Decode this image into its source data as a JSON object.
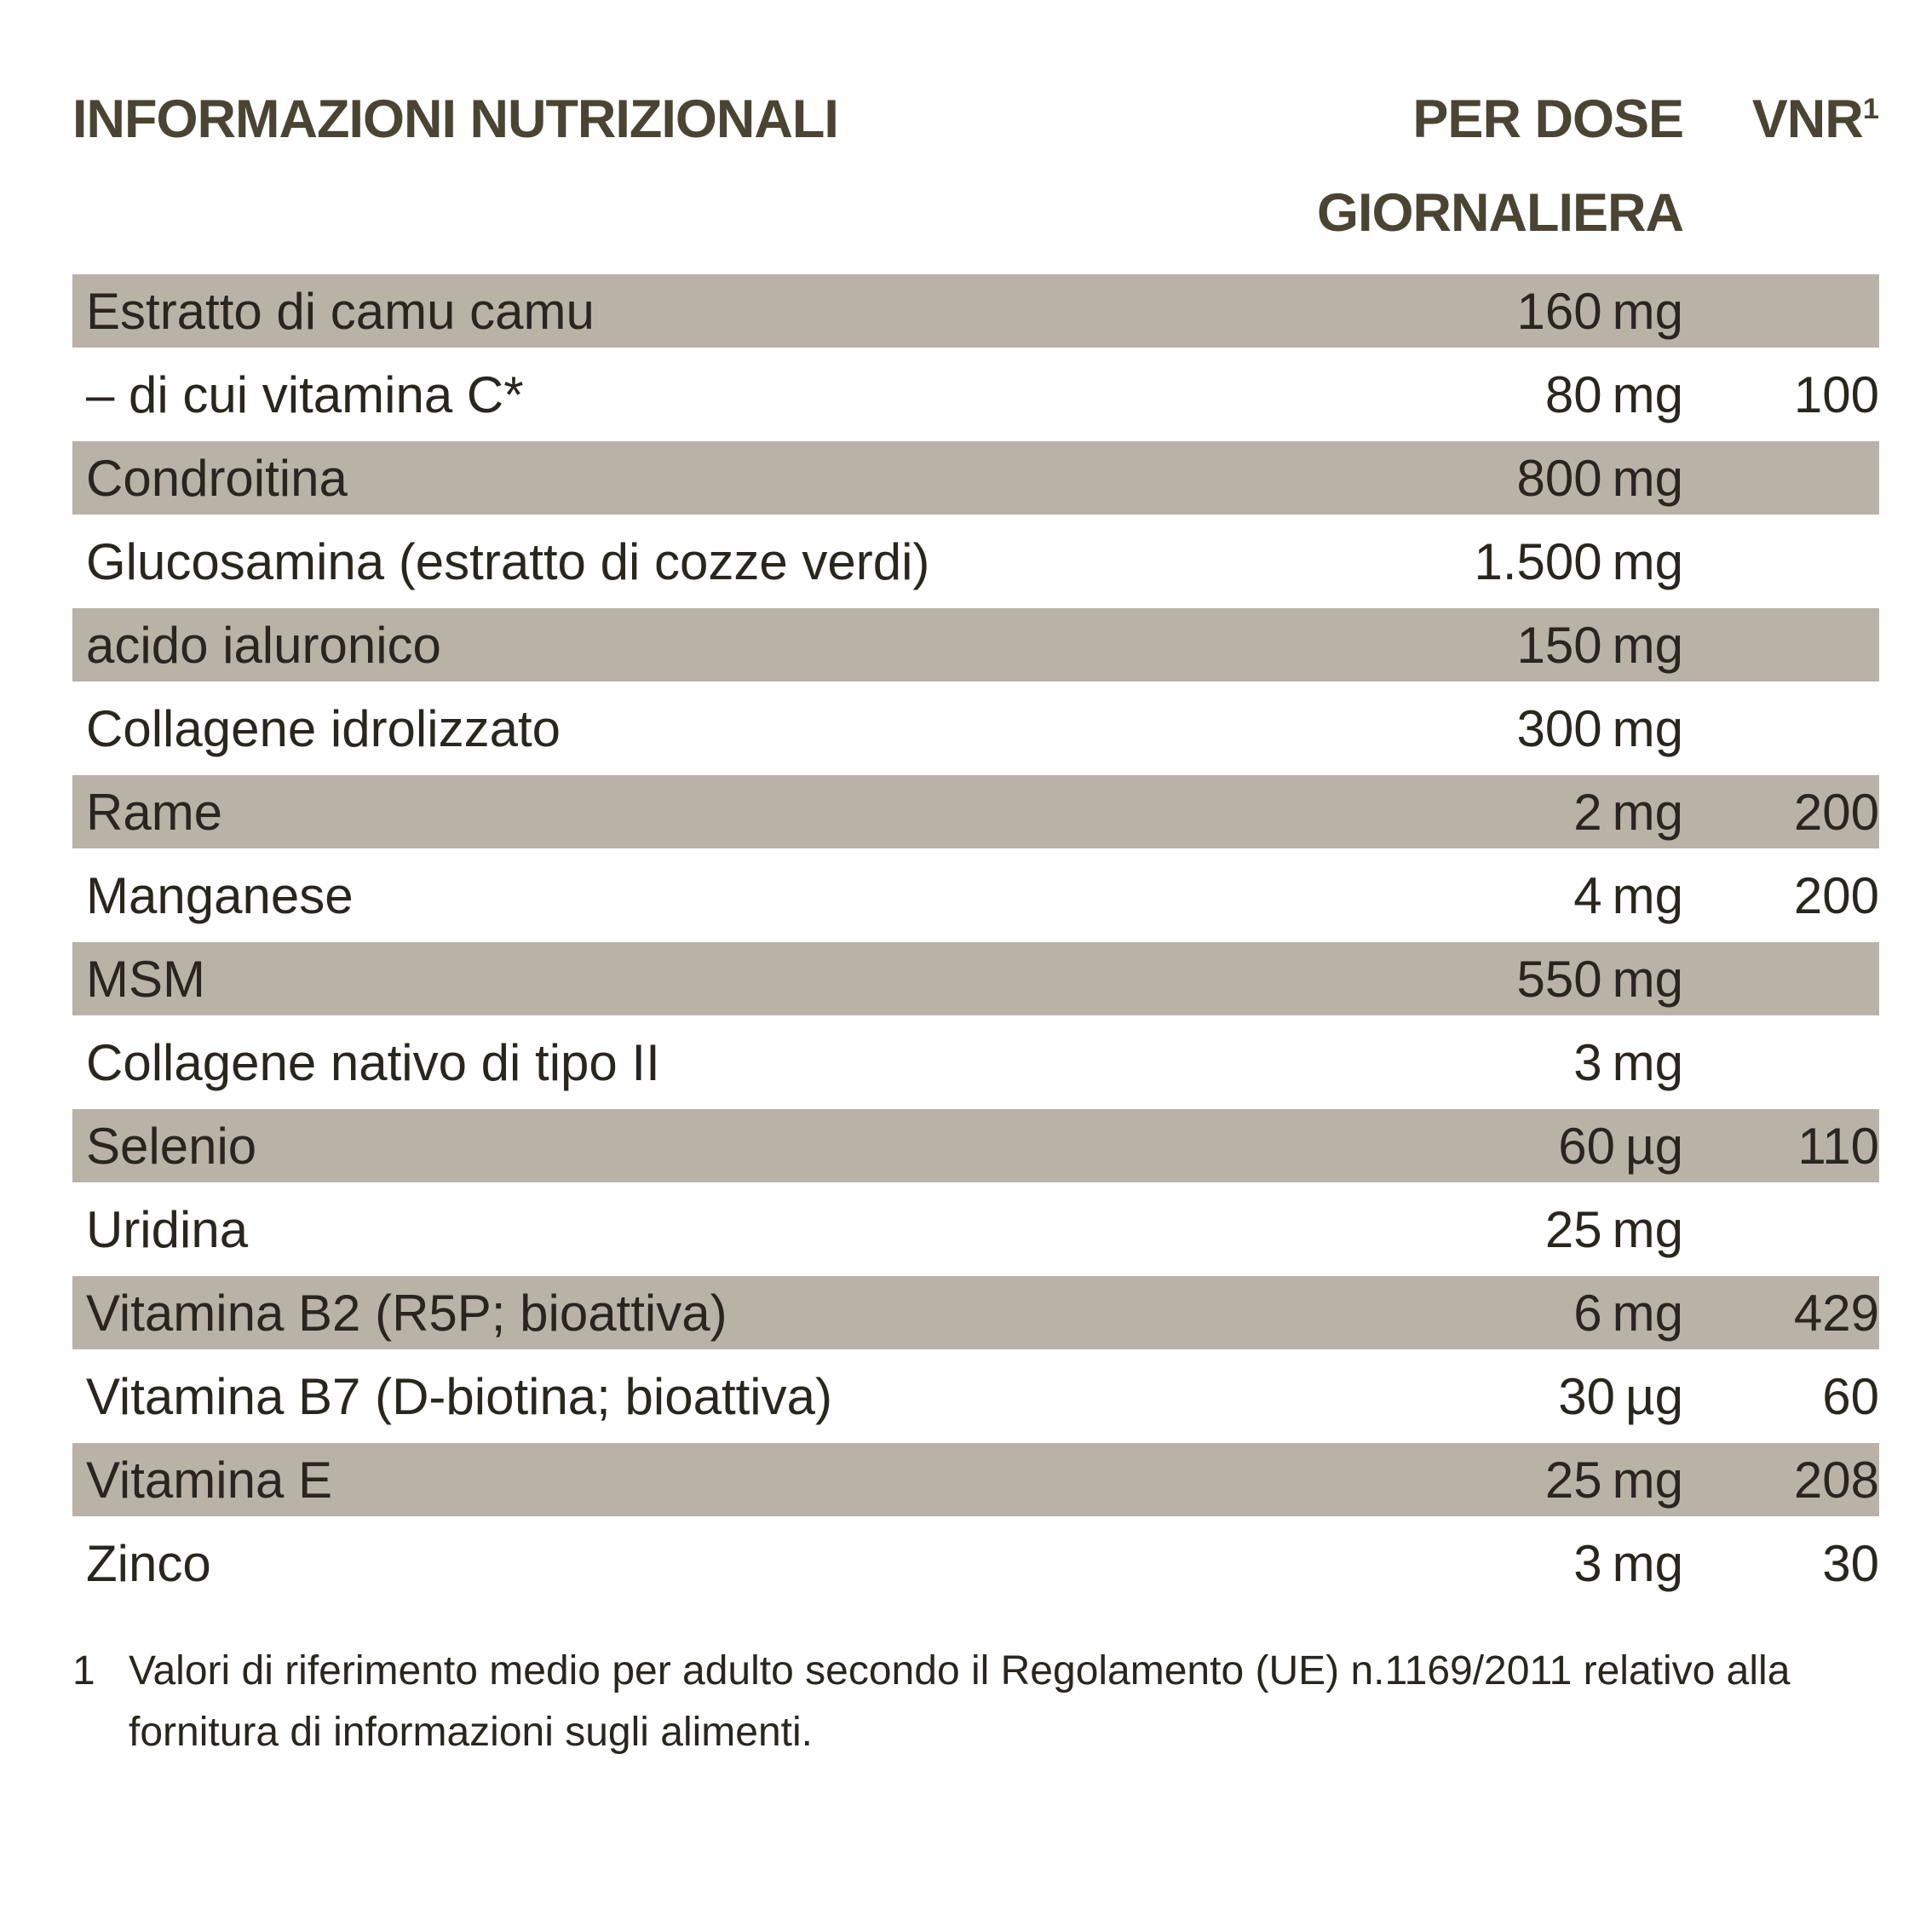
{
  "table": {
    "title": "INFORMAZIONI NUTRIZIONALI",
    "columns": {
      "dose_line1": "PER DOSE",
      "dose_line2": "GIORNALIERA",
      "vnr_label": "VNR",
      "vnr_superscript": "1"
    },
    "rows": [
      {
        "name": "Estratto di camu camu",
        "amount": "160",
        "unit": "mg",
        "vnr": ""
      },
      {
        "name": "– di cui vitamina C*",
        "amount": "80",
        "unit": "mg",
        "vnr": "100"
      },
      {
        "name": "Condroitina",
        "amount": "800",
        "unit": "mg",
        "vnr": ""
      },
      {
        "name": "Glucosamina (estratto di cozze verdi)",
        "amount": "1.500",
        "unit": "mg",
        "vnr": ""
      },
      {
        "name": "acido ialuronico",
        "amount": "150",
        "unit": "mg",
        "vnr": ""
      },
      {
        "name": "Collagene idrolizzato",
        "amount": "300",
        "unit": "mg",
        "vnr": ""
      },
      {
        "name": "Rame",
        "amount": "2",
        "unit": "mg",
        "vnr": "200"
      },
      {
        "name": "Manganese",
        "amount": "4",
        "unit": "mg",
        "vnr": "200"
      },
      {
        "name": "MSM",
        "amount": "550",
        "unit": "mg",
        "vnr": ""
      },
      {
        "name": "Collagene nativo di tipo II",
        "amount": "3",
        "unit": "mg",
        "vnr": ""
      },
      {
        "name": "Selenio",
        "amount": "60",
        "unit": "µg",
        "vnr": "110"
      },
      {
        "name": "Uridina",
        "amount": "25",
        "unit": "mg",
        "vnr": ""
      },
      {
        "name": "Vitamina B2 (R5P; bioattiva)",
        "amount": "6",
        "unit": "mg",
        "vnr": "429"
      },
      {
        "name": "Vitamina B7 (D-biotina; bioattiva)",
        "amount": "30",
        "unit": "µg",
        "vnr": "60"
      },
      {
        "name": "Vitamina E",
        "amount": "25",
        "unit": "mg",
        "vnr": "208"
      },
      {
        "name": "Zinco",
        "amount": "3",
        "unit": "mg",
        "vnr": "30"
      }
    ],
    "footnote": {
      "marker": "1",
      "text": "Valori di riferimento medio per adulto secondo il Regolamento (UE) n.1169/2011 relativo alla fornitura di informazioni sugli alimenti."
    }
  },
  "colors": {
    "heading": "#4a4433",
    "body_text": "#29261f",
    "row_stripe": "#b8b2a7",
    "background": "#ffffff"
  }
}
